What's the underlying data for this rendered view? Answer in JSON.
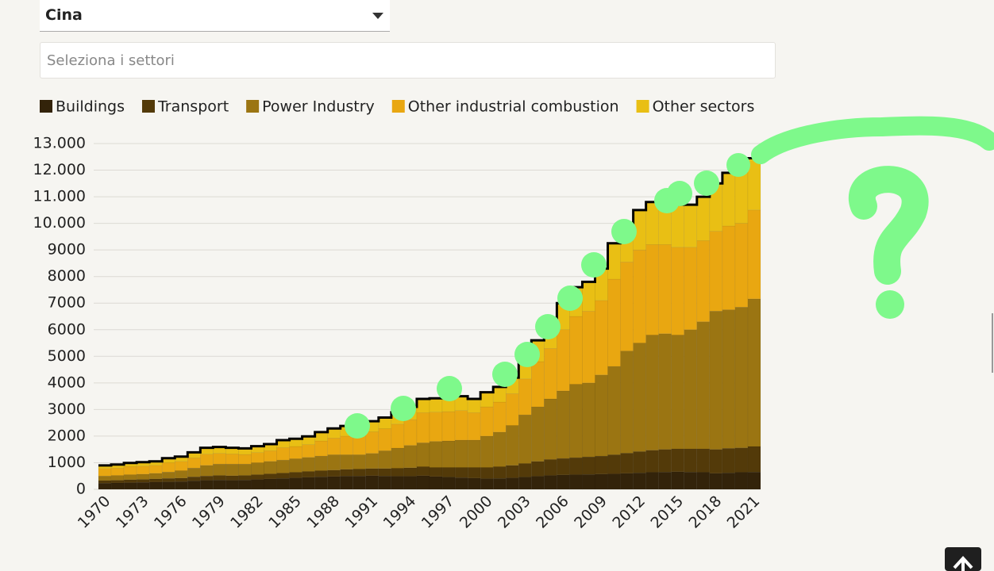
{
  "controls": {
    "country": "Cina",
    "sector_placeholder": "Seleziona i settori"
  },
  "chart_data": {
    "type": "bar",
    "stacked": true,
    "categories": [
      1970,
      null,
      null,
      1973,
      null,
      null,
      1976,
      null,
      null,
      1979,
      null,
      null,
      1982,
      null,
      null,
      1985,
      null,
      null,
      1988,
      null,
      null,
      1991,
      null,
      null,
      1994,
      null,
      null,
      1997,
      null,
      null,
      2000,
      null,
      null,
      2003,
      null,
      null,
      2006,
      null,
      null,
      2009,
      null,
      null,
      2012,
      null,
      null,
      2015,
      null,
      null,
      2018,
      null,
      null,
      2021
    ],
    "series": [
      {
        "name": "Buildings",
        "color": "#33230a",
        "values": [
          230,
          240,
          250,
          260,
          270,
          280,
          290,
          320,
          340,
          350,
          340,
          350,
          370,
          390,
          410,
          430,
          450,
          470,
          480,
          500,
          500,
          510,
          500,
          490,
          490,
          510,
          480,
          460,
          440,
          420,
          400,
          410,
          430,
          460,
          490,
          520,
          540,
          550,
          560,
          570,
          580,
          600,
          620,
          640,
          650,
          660,
          650,
          640,
          600,
          620,
          640,
          650
        ]
      },
      {
        "name": "Transport",
        "color": "#533a09",
        "values": [
          100,
          100,
          110,
          110,
          120,
          130,
          130,
          150,
          160,
          170,
          170,
          170,
          180,
          190,
          200,
          210,
          220,
          230,
          240,
          250,
          260,
          270,
          280,
          300,
          320,
          340,
          340,
          360,
          380,
          400,
          420,
          440,
          470,
          510,
          560,
          600,
          620,
          640,
          660,
          680,
          720,
          760,
          800,
          830,
          850,
          860,
          870,
          880,
          900,
          920,
          920,
          960
        ]
      },
      {
        "name": "Power Industry",
        "color": "#9b7512",
        "values": [
          170,
          180,
          190,
          200,
          210,
          240,
          280,
          330,
          400,
          430,
          440,
          430,
          450,
          470,
          490,
          510,
          530,
          550,
          580,
          550,
          540,
          570,
          670,
          760,
          840,
          900,
          980,
          1000,
          1030,
          1030,
          1180,
          1300,
          1500,
          1830,
          2050,
          2280,
          2540,
          2760,
          2780,
          3050,
          3320,
          3840,
          4080,
          4330,
          4350,
          4280,
          4480,
          4780,
          5200,
          5210,
          5290,
          5550
        ]
      },
      {
        "name": "Other industrial combustion",
        "color": "#e9a711",
        "values": [
          280,
          280,
          300,
          300,
          300,
          350,
          350,
          380,
          420,
          400,
          380,
          360,
          380,
          400,
          470,
          460,
          480,
          570,
          630,
          700,
          740,
          810,
          830,
          900,
          970,
          1130,
          1100,
          1100,
          1110,
          1030,
          1100,
          1130,
          1200,
          1350,
          1700,
          1900,
          2300,
          2550,
          2700,
          2800,
          3280,
          3350,
          3500,
          3400,
          3350,
          3300,
          3100,
          3050,
          3000,
          3150,
          3150,
          3340
        ]
      },
      {
        "name": "Other sectors",
        "color": "#e9bf14",
        "values": [
          120,
          130,
          140,
          150,
          150,
          170,
          180,
          210,
          240,
          240,
          230,
          230,
          240,
          250,
          280,
          290,
          310,
          330,
          360,
          380,
          380,
          400,
          420,
          450,
          480,
          520,
          520,
          530,
          540,
          520,
          550,
          570,
          600,
          700,
          800,
          900,
          1000,
          1100,
          1100,
          1200,
          1350,
          1450,
          1500,
          1600,
          1650,
          1600,
          1600,
          1650,
          1800,
          2000,
          2100,
          1950
        ]
      }
    ],
    "ylim": [
      0,
      13000
    ],
    "yticks": [
      0,
      1000,
      2000,
      3000,
      4000,
      5000,
      6000,
      7000,
      8000,
      9000,
      {
        "value": 10000,
        "label": "10.000"
      },
      {
        "value": 11000,
        "label": "11.000"
      },
      {
        "value": 12000,
        "label": "12.000"
      },
      {
        "value": 13000,
        "label": "13.000"
      }
    ],
    "grid": true,
    "legend": "top"
  }
}
